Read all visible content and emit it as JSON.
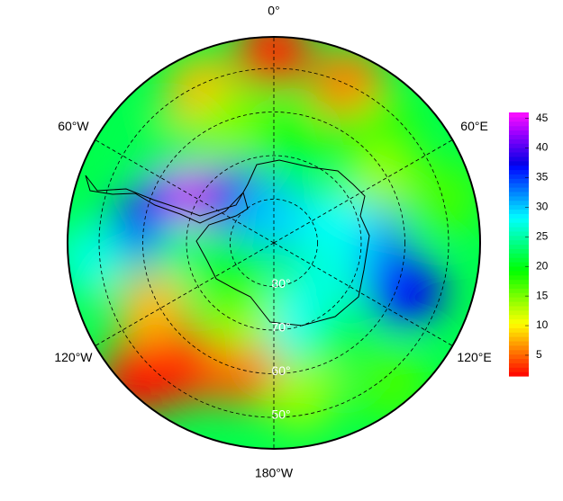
{
  "map": {
    "lon_labels": [
      {
        "value": 0,
        "label": "0°"
      },
      {
        "value": 60,
        "label": "60°E"
      },
      {
        "value": 120,
        "label": "120°E"
      },
      {
        "value": -180,
        "label": "180°W"
      },
      {
        "value": -120,
        "label": "120°W"
      },
      {
        "value": -60,
        "label": "60°W"
      }
    ],
    "lat_labels": [
      {
        "value": -80,
        "label": "80°"
      },
      {
        "value": -70,
        "label": "70°"
      },
      {
        "value": -60,
        "label": "60°"
      },
      {
        "value": -50,
        "label": "50°"
      }
    ],
    "colorbar": {
      "clim": [
        1.5,
        46
      ],
      "ticks": [
        5,
        10,
        15,
        20,
        25,
        30,
        35,
        40,
        45
      ]
    },
    "field": [
      {
        "lon": 0,
        "lat": -46,
        "value": 3
      },
      {
        "lon": 25,
        "lat": -50,
        "value": 6
      },
      {
        "lon": -25,
        "lat": -52,
        "value": 8
      },
      {
        "lon": -20,
        "lat": -62,
        "value": 15
      },
      {
        "lon": 10,
        "lat": -65,
        "value": 20
      },
      {
        "lon": 45,
        "lat": -55,
        "value": 18
      },
      {
        "lon": 60,
        "lat": -62,
        "value": 14
      },
      {
        "lon": 75,
        "lat": -50,
        "value": 17
      },
      {
        "lon": -50,
        "lat": -58,
        "value": 22
      },
      {
        "lon": -70,
        "lat": -65,
        "value": 40
      },
      {
        "lon": -60,
        "lat": -72,
        "value": 45
      },
      {
        "lon": -85,
        "lat": -60,
        "value": 37
      },
      {
        "lon": -40,
        "lat": -78,
        "value": 38
      },
      {
        "lon": -95,
        "lat": -48,
        "value": 27
      },
      {
        "lon": -100,
        "lat": -70,
        "value": 24
      },
      {
        "lon": 0,
        "lat": -84,
        "value": 30
      },
      {
        "lon": 90,
        "lat": -68,
        "value": 32
      },
      {
        "lon": 110,
        "lat": -58,
        "value": 37
      },
      {
        "lon": 75,
        "lat": -76,
        "value": 28
      },
      {
        "lon": 125,
        "lat": -75,
        "value": 27
      },
      {
        "lon": 150,
        "lat": -62,
        "value": 22
      },
      {
        "lon": 140,
        "lat": -48,
        "value": 17
      },
      {
        "lon": 175,
        "lat": -72,
        "value": 28
      },
      {
        "lon": 170,
        "lat": -55,
        "value": 14
      },
      {
        "lon": -120,
        "lat": -58,
        "value": 8
      },
      {
        "lon": -145,
        "lat": -55,
        "value": 3
      },
      {
        "lon": -135,
        "lat": -46,
        "value": 2
      },
      {
        "lon": -165,
        "lat": -60,
        "value": 5
      },
      {
        "lon": -155,
        "lat": -72,
        "value": 14
      },
      {
        "lon": -125,
        "lat": -78,
        "value": 20
      }
    ]
  }
}
